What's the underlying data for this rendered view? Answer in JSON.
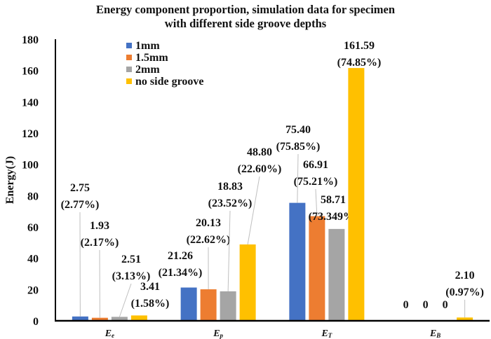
{
  "chart_data": {
    "type": "bar",
    "title": [
      "Energy component proportion, simulation data for specimen",
      "with different side groove depths"
    ],
    "xlabel": "",
    "ylabel": "Energy(J)",
    "ylim": [
      0,
      180
    ],
    "yticks": [
      0,
      20,
      40,
      60,
      80,
      100,
      120,
      140,
      160,
      180
    ],
    "grid": false,
    "legend_position": "top-left",
    "categories": [
      {
        "main": "E",
        "sub": "e"
      },
      {
        "main": "E",
        "sub": "p"
      },
      {
        "main": "E",
        "sub": "T"
      },
      {
        "main": "E",
        "sub": "B"
      }
    ],
    "series": [
      {
        "name": "1mm",
        "color": "#4472C4",
        "values": [
          2.75,
          21.26,
          75.4,
          0
        ],
        "labels": [
          [
            "2.75",
            "(2.77%)"
          ],
          [
            "21.26",
            "(21.34%)"
          ],
          [
            "75.40",
            "(75.85%)"
          ],
          [
            "0"
          ]
        ]
      },
      {
        "name": "1.5mm",
        "color": "#ED7D31",
        "values": [
          1.93,
          20.13,
          66.91,
          0
        ],
        "labels": [
          [
            "1.93",
            "(2.17%)"
          ],
          [
            "20.13",
            "(22.62%)"
          ],
          [
            "66.91",
            "(75.21%)"
          ],
          [
            "0"
          ]
        ]
      },
      {
        "name": "2mm",
        "color": "#A5A5A5",
        "values": [
          2.51,
          18.83,
          58.71,
          0
        ],
        "labels": [
          [
            "2.51",
            "(3.13%)"
          ],
          [
            "18.83",
            "(23.52%)"
          ],
          [
            "58.71",
            "(73.349%)"
          ],
          [
            "0"
          ]
        ]
      },
      {
        "name": "no side groove",
        "color": "#FFC000",
        "values": [
          3.41,
          48.8,
          161.59,
          2.1
        ],
        "labels": [
          [
            "3.41",
            "(1.58%)"
          ],
          [
            "48.80",
            "(22.60%)"
          ],
          [
            "161.59",
            "(74.85%)"
          ],
          [
            "2.10",
            "(0.97%)"
          ]
        ]
      }
    ]
  }
}
